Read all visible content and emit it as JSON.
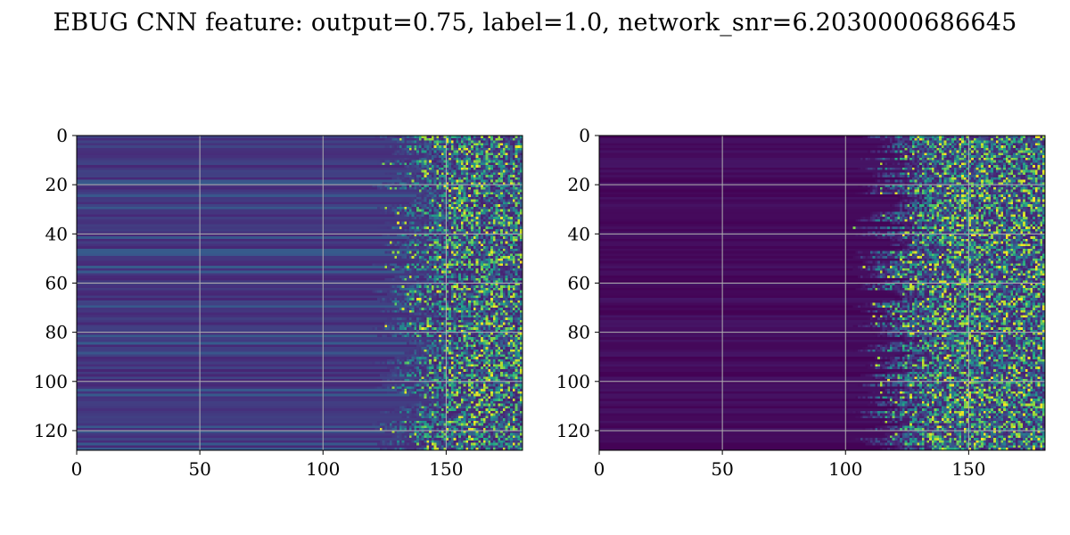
{
  "figure": {
    "title": "EBUG CNN feature: output=0.75, label=1.0, network_snr=6.2030000686645"
  },
  "chart_data": [
    {
      "type": "heatmap",
      "title": "",
      "xlabel": "",
      "ylabel": "",
      "colormap": "viridis",
      "xlim": [
        0,
        181
      ],
      "ylim": [
        128,
        0
      ],
      "x_ticks": [
        0,
        50,
        100,
        150
      ],
      "y_ticks": [
        0,
        20,
        40,
        60,
        80,
        100,
        120
      ],
      "grid": true,
      "rows": 128,
      "cols": 181,
      "pattern": "smooth low-intensity banded rows for x < ~130 (baseline ~0.18 intensity), noisy bright speckle for x > ~130"
    },
    {
      "type": "heatmap",
      "title": "",
      "xlabel": "",
      "ylabel": "",
      "colormap": "viridis",
      "xlim": [
        0,
        181
      ],
      "ylim": [
        128,
        0
      ],
      "x_ticks": [
        0,
        50,
        100,
        150
      ],
      "y_ticks": [
        0,
        20,
        40,
        60,
        80,
        100,
        120
      ],
      "grid": true,
      "rows": 128,
      "cols": 181,
      "pattern": "near-zero dark banded rows for x < ~110 (baseline ~0.05 intensity), noisy bright speckle for x > ~110"
    }
  ],
  "colors": {
    "gridline": "#b0b0b0",
    "viridis_dark": "#440154",
    "viridis_mid": "#21918c",
    "viridis_bright": "#fde725"
  }
}
